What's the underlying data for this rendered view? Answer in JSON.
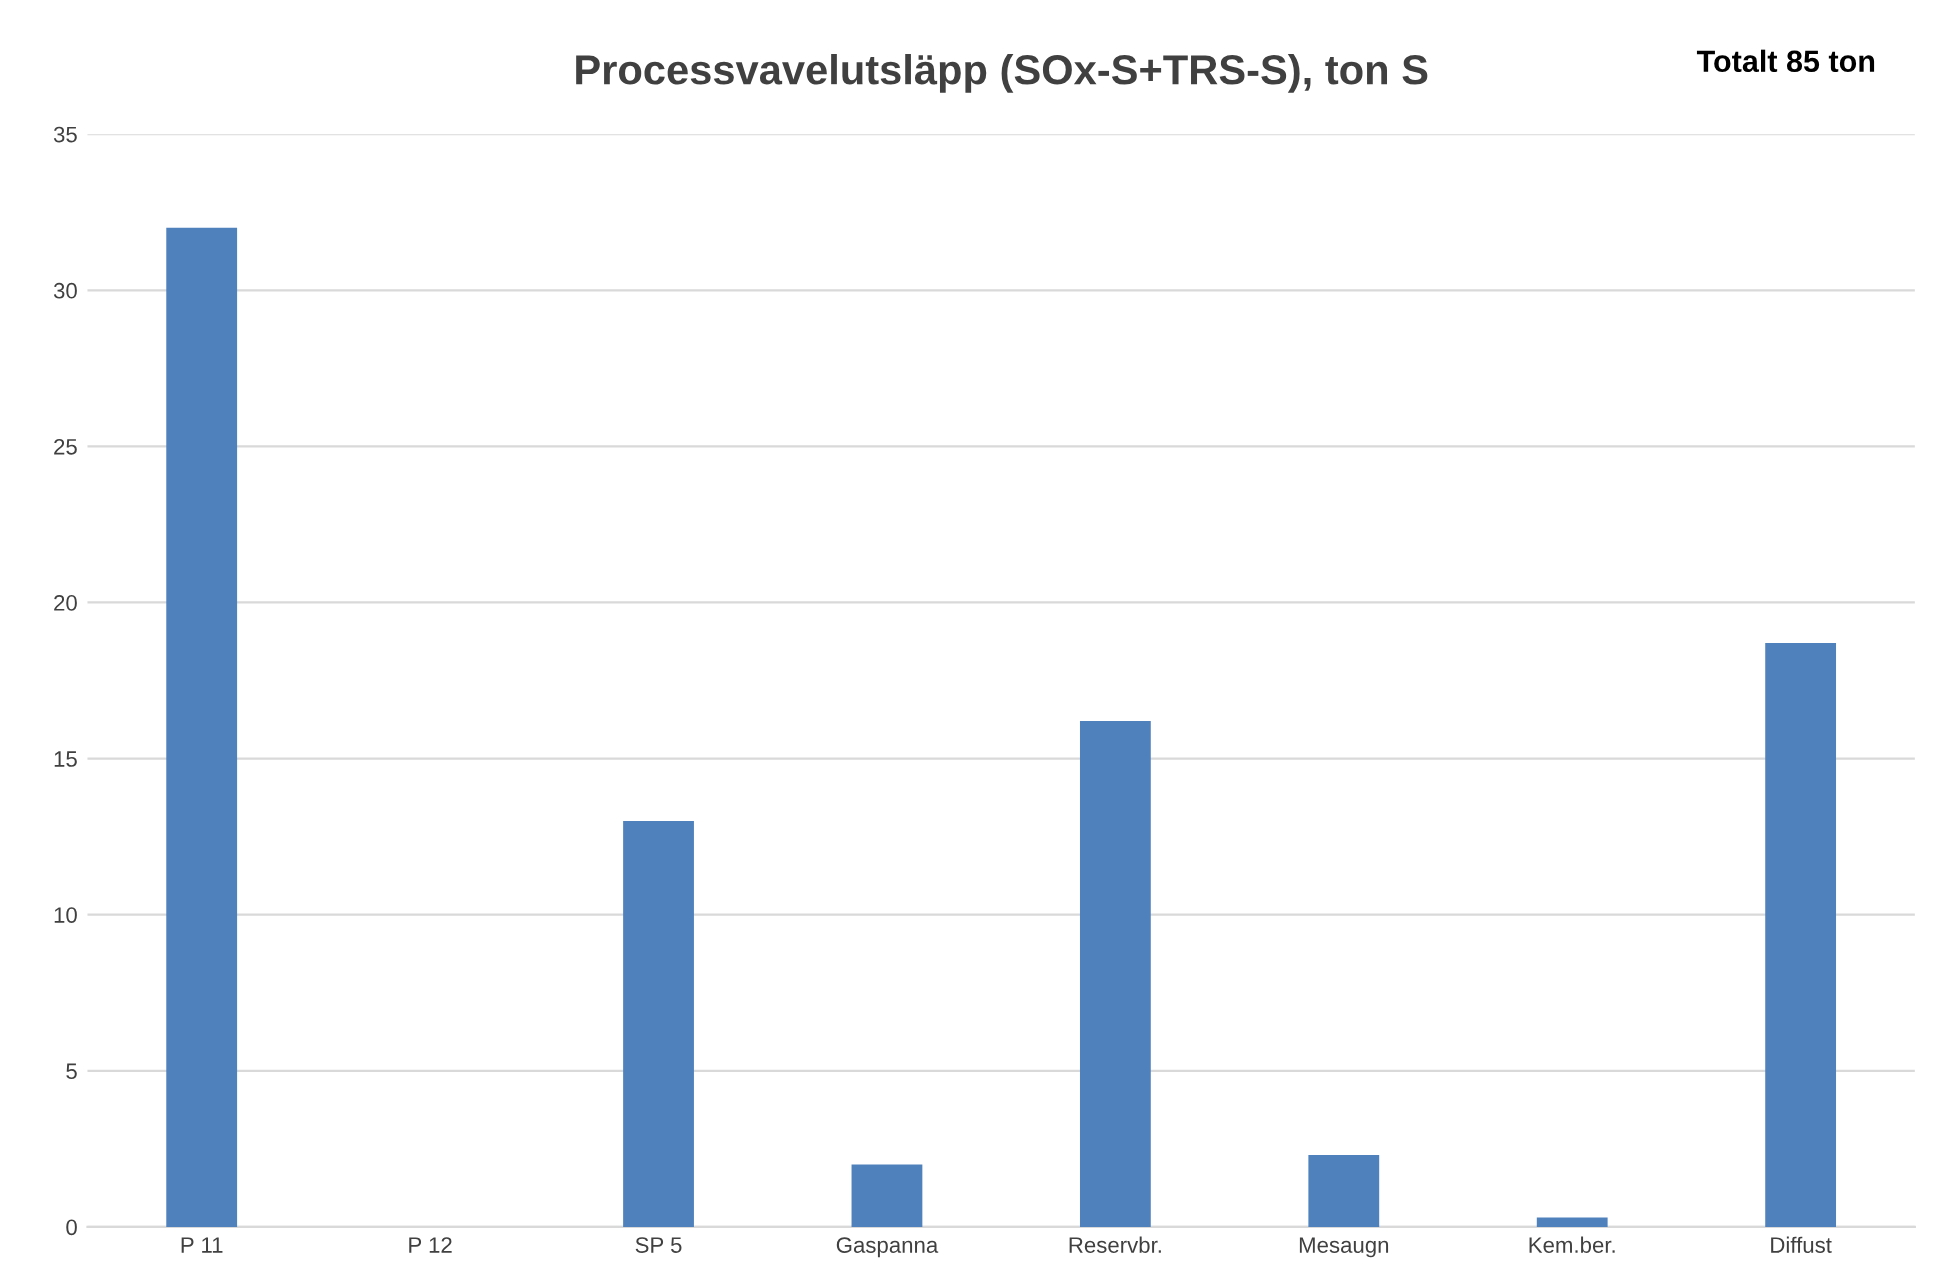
{
  "chart_data": {
    "type": "bar",
    "title": "Processvavelutsläpp (SOx-S+TRS-S), ton S",
    "annotations": [
      "Totalt 85 ton"
    ],
    "categories": [
      "P 11",
      "P 12",
      "SP 5",
      "Gaspanna",
      "Reservbr.",
      "Mesaugn",
      "Kem.ber.",
      "Diffust"
    ],
    "values": [
      32,
      0,
      13,
      2.0,
      16.2,
      2.3,
      0.3,
      18.7
    ],
    "color": "#4f81bd",
    "ylim": [
      0,
      35
    ],
    "yticks": [
      0,
      5,
      10,
      15,
      20,
      25,
      30,
      35
    ],
    "grid": "y",
    "legend": false
  }
}
